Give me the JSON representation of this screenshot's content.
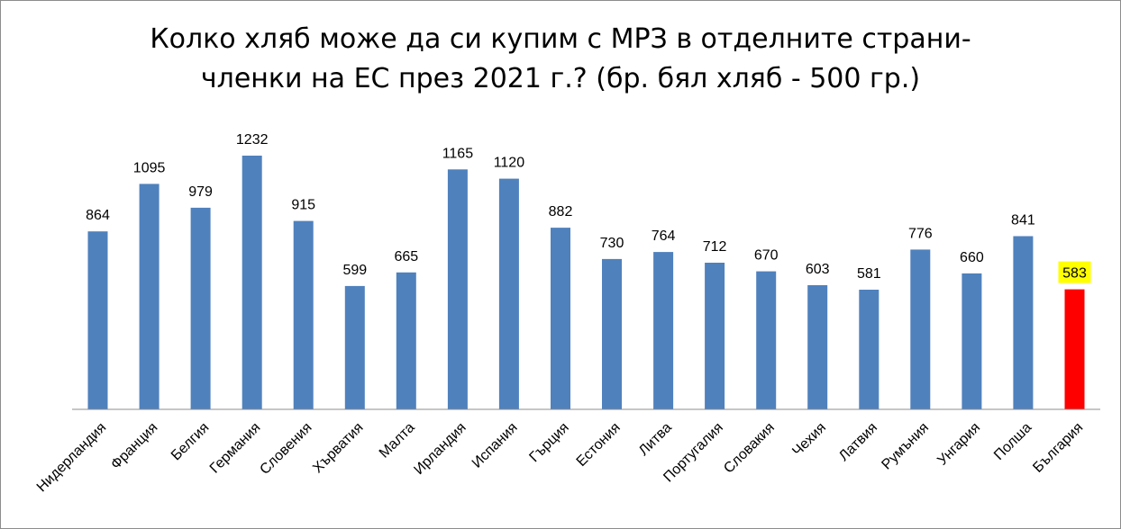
{
  "chart_data": {
    "type": "bar",
    "title_lines": [
      "Колко хляб може да си купим с МРЗ в отделните страни-",
      "членки на ЕС през 2021 г.? (бр. бял хляб - 500 гр.)"
    ],
    "categories": [
      "Нидерландия",
      "Франция",
      "Белгия",
      "Германия",
      "Словения",
      "Хърватия",
      "Малта",
      "Ирландия",
      "Испания",
      "Гърция",
      "Естония",
      "Литва",
      "Португалия",
      "Словакия",
      "Чехия",
      "Латвия",
      "Румъния",
      "Унгария",
      "Полша",
      "България"
    ],
    "values": [
      864,
      1095,
      979,
      1232,
      915,
      599,
      665,
      1165,
      1120,
      882,
      730,
      764,
      712,
      670,
      603,
      581,
      776,
      660,
      841,
      583
    ],
    "ylim": [
      0,
      1250
    ],
    "grid": false,
    "legend": "none",
    "colors": {
      "bar": "#4f81bd",
      "highlight_bar": "#ff0000",
      "highlight_label_bg": "#ffff00",
      "axis": "#8c8c8c",
      "text": "#000000"
    },
    "highlight_category": "България"
  }
}
